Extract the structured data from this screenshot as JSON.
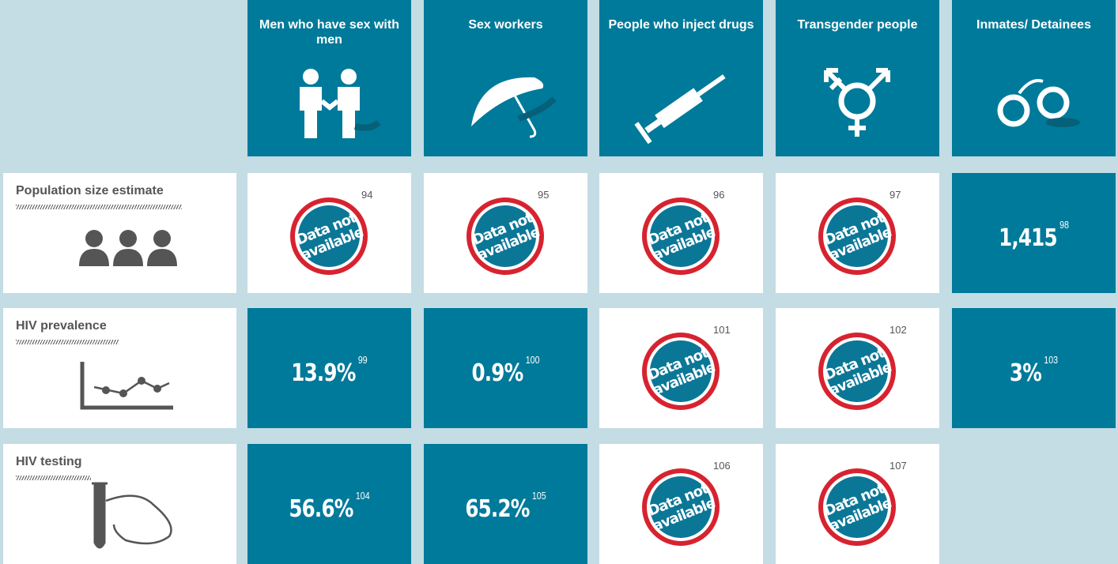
{
  "header": {
    "columns": [
      "Men who have sex with men",
      "Sex workers",
      "People who inject drugs",
      "Transgender people",
      "Inmates/ Detainees"
    ]
  },
  "rows": [
    {
      "label": "Population size estimate",
      "cells": [
        {
          "status": [
            "Data not",
            "available"
          ],
          "note": "94"
        },
        {
          "status": [
            "Data not",
            "available"
          ],
          "note": "95"
        },
        {
          "status": [
            "Data not",
            "available"
          ],
          "note": "96"
        },
        {
          "status": [
            "Data not",
            "available"
          ],
          "note": "97"
        },
        {
          "value": "1,415",
          "note": "98"
        }
      ]
    },
    {
      "label": "HIV prevalence",
      "cells": [
        {
          "value": "13.9%",
          "note": "99"
        },
        {
          "value": "0.9%",
          "note": "100"
        },
        {
          "status": [
            "Data not",
            "available"
          ],
          "note": "101"
        },
        {
          "status": [
            "Data not",
            "available"
          ],
          "note": "102"
        },
        {
          "value": "3%",
          "note": "103"
        }
      ]
    },
    {
      "label": "HIV testing",
      "cells": [
        {
          "value": "56.6%",
          "note": "104"
        },
        {
          "value": "65.2%",
          "note": "105"
        },
        {
          "status": [
            "Data not",
            "available"
          ],
          "note": "106"
        },
        {
          "status": [
            "Data not",
            "available"
          ],
          "note": "107"
        }
      ]
    }
  ]
}
